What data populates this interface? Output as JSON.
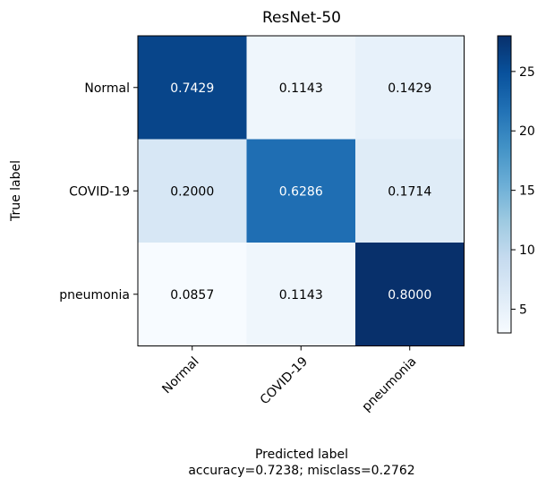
{
  "chart_data": {
    "type": "heatmap",
    "title": "ResNet-50",
    "xlabel": "Predicted label",
    "ylabel": "True label",
    "footer": "accuracy=0.7238; misclass=0.2762",
    "x_categories": [
      "Normal",
      "COVID-19",
      "pneumonia"
    ],
    "y_categories": [
      "Normal",
      "COVID-19",
      "pneumonia"
    ],
    "cells": [
      [
        "0.7429",
        "0.1143",
        "0.1429"
      ],
      [
        "0.2000",
        "0.6286",
        "0.1714"
      ],
      [
        "0.0857",
        "0.1143",
        "0.8000"
      ]
    ],
    "counts": [
      [
        26,
        4,
        5
      ],
      [
        7,
        22,
        6
      ],
      [
        3,
        4,
        28
      ]
    ],
    "colorbar": {
      "min": 3,
      "max": 28,
      "ticks": [
        "5",
        "10",
        "15",
        "20",
        "25"
      ],
      "colormap": [
        "#f7fbff",
        "#deebf7",
        "#c6dbef",
        "#9ecae1",
        "#6baed6",
        "#4292c6",
        "#2171b5",
        "#08519c",
        "#08306b"
      ]
    }
  }
}
